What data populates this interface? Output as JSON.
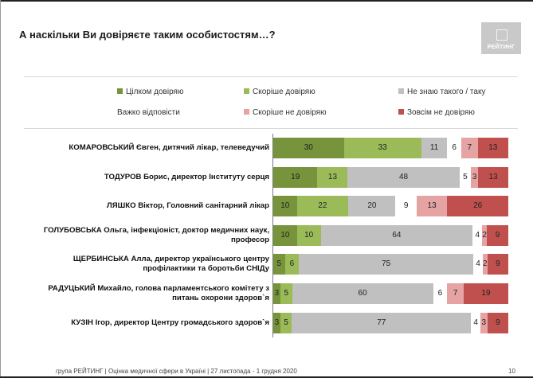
{
  "title": "А наскільки Ви довіряєте таким особистостям…?",
  "logo_text": "РЕЙТИНГ",
  "footer": "група РЕЙТИНГ  |  Оцінка медичної сфери в Україні  |  27 листопада - 1 грудня 2020",
  "page_number": "10",
  "chart_data": {
    "type": "bar",
    "orientation": "horizontal",
    "stacked": true,
    "normalized": true,
    "title": "А наскільки Ви довіряєте таким особистостям…?",
    "legend_position": "top",
    "categories": [
      "КОМАРОВСЬКИЙ Євген, дитячий лікар, телеведучий",
      "ТОДУРОВ Борис, директор Інституту серця",
      "ЛЯШКО Віктор, Головний санітарний лікар",
      "ГОЛУБОВСЬКА Ольга, інфекціоніст, доктор медичних наук, професор",
      "ЩЕРБИНСЬКА Алла, директор українського центру профілактики та боротьби СНІДу",
      "РАДУЦЬКИЙ Михайло, голова парламентського комітету з питань охорони здоров`я",
      "КУЗІН Ігор, директор Центру громадського здоров`я"
    ],
    "category_lines": [
      [
        "КОМАРОВСЬКИЙ Євген, дитячий лікар, телеведучий"
      ],
      [
        "ТОДУРОВ Борис, директор Інституту серця"
      ],
      [
        "ЛЯШКО Віктор, Головний санітарний лікар"
      ],
      [
        "ГОЛУБОВСЬКА Ольга, інфекціоніст, доктор медичних наук,",
        "професор"
      ],
      [
        "ЩЕРБИНСЬКА Алла, директор українського центру",
        "профілактики та боротьби СНІДу"
      ],
      [
        "РАДУЦЬКИЙ Михайло, голова парламентського комітету з",
        "питань охорони здоров`я"
      ],
      [
        "КУЗІН Ігор, директор Центру громадського здоров`я"
      ]
    ],
    "series": [
      {
        "name": "Цілком довіряю",
        "color": "#77933c",
        "values": [
          30,
          19,
          10,
          10,
          5,
          3,
          3
        ]
      },
      {
        "name": "Скоріше довіряю",
        "color": "#9bbb59",
        "values": [
          33,
          13,
          22,
          10,
          6,
          5,
          5
        ]
      },
      {
        "name": "Не знаю такого / таку",
        "color": "#c0c0c0",
        "values": [
          11,
          48,
          20,
          64,
          75,
          60,
          77
        ]
      },
      {
        "name": "Важко відповісти",
        "color": "#ffffff",
        "values": [
          6,
          5,
          9,
          4,
          4,
          6,
          4
        ]
      },
      {
        "name": "Скоріше не довіряю",
        "color": "#e6a3a3",
        "values": [
          7,
          3,
          13,
          2,
          2,
          7,
          3
        ]
      },
      {
        "name": "Зовсім не довіряю",
        "color": "#c0504d",
        "values": [
          13,
          13,
          26,
          9,
          9,
          19,
          9
        ]
      }
    ]
  }
}
